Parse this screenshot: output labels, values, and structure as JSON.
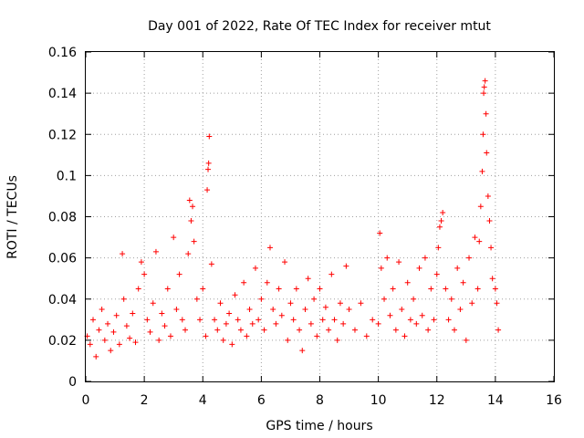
{
  "chart_data": {
    "type": "scatter",
    "title": "Day 001 of 2022, Rate Of TEC Index for receiver mtut",
    "xlabel": "GPS time / hours",
    "ylabel": "ROTI / TECUs",
    "xlim": [
      0,
      16
    ],
    "ylim": [
      0,
      0.16
    ],
    "x_ticks": [
      "0",
      "2",
      "4",
      "6",
      "8",
      "10",
      "12",
      "14",
      "16"
    ],
    "y_ticks": [
      "0",
      "0.02",
      "0.04",
      "0.06",
      "0.08",
      "0.1",
      "0.12",
      "0.14",
      "0.16"
    ],
    "grid": true,
    "marker": "+",
    "series": [
      {
        "name": "ROTI",
        "color": "#ff0000",
        "points": [
          [
            0.05,
            0.022
          ],
          [
            0.15,
            0.018
          ],
          [
            0.25,
            0.03
          ],
          [
            0.35,
            0.012
          ],
          [
            0.45,
            0.025
          ],
          [
            0.55,
            0.035
          ],
          [
            0.65,
            0.02
          ],
          [
            0.75,
            0.028
          ],
          [
            0.85,
            0.015
          ],
          [
            0.95,
            0.024
          ],
          [
            1.05,
            0.032
          ],
          [
            1.15,
            0.018
          ],
          [
            1.25,
            0.062
          ],
          [
            1.3,
            0.04
          ],
          [
            1.4,
            0.027
          ],
          [
            1.5,
            0.021
          ],
          [
            1.6,
            0.033
          ],
          [
            1.7,
            0.019
          ],
          [
            1.8,
            0.045
          ],
          [
            1.9,
            0.058
          ],
          [
            2.0,
            0.052
          ],
          [
            2.1,
            0.03
          ],
          [
            2.2,
            0.024
          ],
          [
            2.3,
            0.038
          ],
          [
            2.4,
            0.063
          ],
          [
            2.5,
            0.02
          ],
          [
            2.6,
            0.033
          ],
          [
            2.7,
            0.027
          ],
          [
            2.8,
            0.045
          ],
          [
            2.9,
            0.022
          ],
          [
            3.0,
            0.07
          ],
          [
            3.1,
            0.035
          ],
          [
            3.2,
            0.052
          ],
          [
            3.3,
            0.03
          ],
          [
            3.4,
            0.025
          ],
          [
            3.5,
            0.062
          ],
          [
            3.55,
            0.088
          ],
          [
            3.6,
            0.078
          ],
          [
            3.65,
            0.085
          ],
          [
            3.7,
            0.068
          ],
          [
            3.8,
            0.04
          ],
          [
            3.9,
            0.03
          ],
          [
            4.0,
            0.045
          ],
          [
            4.1,
            0.022
          ],
          [
            4.15,
            0.093
          ],
          [
            4.18,
            0.103
          ],
          [
            4.2,
            0.106
          ],
          [
            4.22,
            0.119
          ],
          [
            4.3,
            0.057
          ],
          [
            4.4,
            0.03
          ],
          [
            4.5,
            0.025
          ],
          [
            4.6,
            0.038
          ],
          [
            4.7,
            0.02
          ],
          [
            4.8,
            0.028
          ],
          [
            4.9,
            0.033
          ],
          [
            5.0,
            0.018
          ],
          [
            5.1,
            0.042
          ],
          [
            5.2,
            0.03
          ],
          [
            5.3,
            0.025
          ],
          [
            5.4,
            0.048
          ],
          [
            5.5,
            0.022
          ],
          [
            5.6,
            0.035
          ],
          [
            5.7,
            0.028
          ],
          [
            5.8,
            0.055
          ],
          [
            5.9,
            0.03
          ],
          [
            6.0,
            0.04
          ],
          [
            6.1,
            0.025
          ],
          [
            6.2,
            0.048
          ],
          [
            6.3,
            0.065
          ],
          [
            6.4,
            0.035
          ],
          [
            6.5,
            0.028
          ],
          [
            6.6,
            0.045
          ],
          [
            6.7,
            0.032
          ],
          [
            6.8,
            0.058
          ],
          [
            6.9,
            0.02
          ],
          [
            7.0,
            0.038
          ],
          [
            7.1,
            0.03
          ],
          [
            7.2,
            0.045
          ],
          [
            7.3,
            0.025
          ],
          [
            7.4,
            0.015
          ],
          [
            7.5,
            0.035
          ],
          [
            7.6,
            0.05
          ],
          [
            7.7,
            0.028
          ],
          [
            7.8,
            0.04
          ],
          [
            7.9,
            0.022
          ],
          [
            8.0,
            0.045
          ],
          [
            8.1,
            0.03
          ],
          [
            8.2,
            0.036
          ],
          [
            8.3,
            0.025
          ],
          [
            8.4,
            0.052
          ],
          [
            8.5,
            0.03
          ],
          [
            8.6,
            0.02
          ],
          [
            8.7,
            0.038
          ],
          [
            8.8,
            0.028
          ],
          [
            8.9,
            0.056
          ],
          [
            9.0,
            0.035
          ],
          [
            9.2,
            0.025
          ],
          [
            9.4,
            0.038
          ],
          [
            9.6,
            0.022
          ],
          [
            9.8,
            0.03
          ],
          [
            10.0,
            0.028
          ],
          [
            10.05,
            0.072
          ],
          [
            10.1,
            0.055
          ],
          [
            10.2,
            0.04
          ],
          [
            10.3,
            0.06
          ],
          [
            10.4,
            0.032
          ],
          [
            10.5,
            0.045
          ],
          [
            10.6,
            0.025
          ],
          [
            10.7,
            0.058
          ],
          [
            10.8,
            0.035
          ],
          [
            10.9,
            0.022
          ],
          [
            11.0,
            0.048
          ],
          [
            11.1,
            0.03
          ],
          [
            11.2,
            0.04
          ],
          [
            11.3,
            0.028
          ],
          [
            11.4,
            0.055
          ],
          [
            11.5,
            0.032
          ],
          [
            11.6,
            0.06
          ],
          [
            11.7,
            0.025
          ],
          [
            11.8,
            0.045
          ],
          [
            11.9,
            0.03
          ],
          [
            12.0,
            0.052
          ],
          [
            12.05,
            0.065
          ],
          [
            12.1,
            0.075
          ],
          [
            12.15,
            0.078
          ],
          [
            12.2,
            0.082
          ],
          [
            12.3,
            0.045
          ],
          [
            12.4,
            0.03
          ],
          [
            12.5,
            0.04
          ],
          [
            12.6,
            0.025
          ],
          [
            12.7,
            0.055
          ],
          [
            12.8,
            0.035
          ],
          [
            12.9,
            0.048
          ],
          [
            13.0,
            0.02
          ],
          [
            13.1,
            0.06
          ],
          [
            13.2,
            0.038
          ],
          [
            13.3,
            0.07
          ],
          [
            13.4,
            0.045
          ],
          [
            13.45,
            0.068
          ],
          [
            13.5,
            0.085
          ],
          [
            13.55,
            0.102
          ],
          [
            13.58,
            0.12
          ],
          [
            13.6,
            0.14
          ],
          [
            13.62,
            0.143
          ],
          [
            13.65,
            0.146
          ],
          [
            13.68,
            0.13
          ],
          [
            13.7,
            0.111
          ],
          [
            13.75,
            0.09
          ],
          [
            13.8,
            0.078
          ],
          [
            13.85,
            0.065
          ],
          [
            13.9,
            0.05
          ],
          [
            14.0,
            0.045
          ],
          [
            14.05,
            0.038
          ],
          [
            14.1,
            0.025
          ]
        ]
      }
    ]
  }
}
